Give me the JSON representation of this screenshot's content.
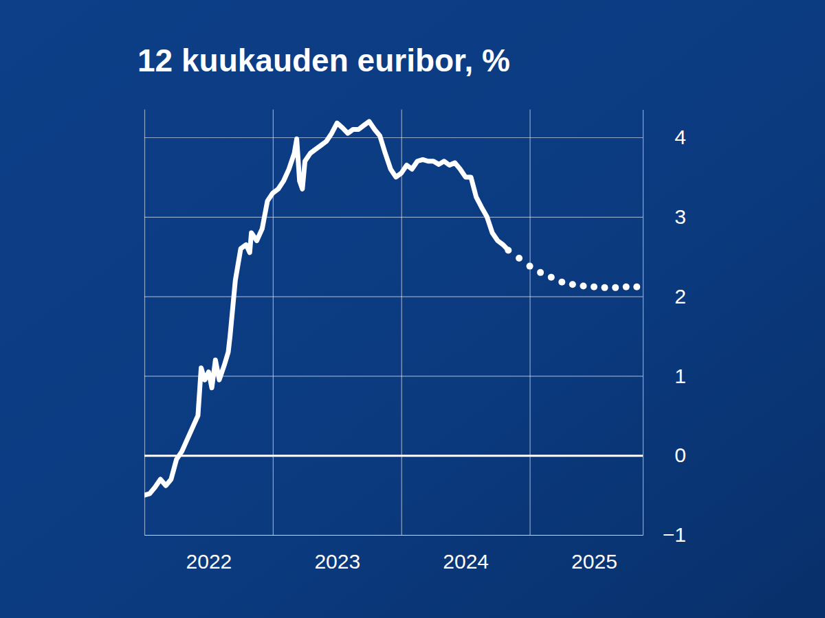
{
  "chart_data": {
    "type": "line",
    "title": "12 kuukauden euribor, %",
    "xlim": [
      2022,
      2025.88
    ],
    "xticks": [
      2022,
      2023,
      2024,
      2025
    ],
    "ylim": [
      -1,
      4.35
    ],
    "yticks": [
      {
        "value": -1,
        "label": "−1"
      },
      0,
      1,
      2,
      3,
      4
    ],
    "grid": true,
    "series": [
      {
        "color": "#ffffff",
        "line_style": "solid",
        "x": [
          2022.0,
          2022.042,
          2022.083,
          2022.125,
          2022.167,
          2022.208,
          2022.25,
          2022.292,
          2022.333,
          2022.375,
          2022.417,
          2022.442,
          2022.47,
          2022.5,
          2022.525,
          2022.553,
          2022.583,
          2022.625,
          2022.653,
          2022.667,
          2022.708,
          2022.75,
          2022.792,
          2022.82,
          2022.833,
          2022.875,
          2022.917,
          2022.958,
          2023.0,
          2023.042,
          2023.083,
          2023.125,
          2023.167,
          2023.186,
          2023.208,
          2023.23,
          2023.25,
          2023.292,
          2023.333,
          2023.375,
          2023.417,
          2023.458,
          2023.5,
          2023.542,
          2023.583,
          2023.625,
          2023.667,
          2023.708,
          2023.75,
          2023.792,
          2023.833,
          2023.875,
          2023.917,
          2023.958,
          2024.0,
          2024.042,
          2024.083,
          2024.125,
          2024.167,
          2024.208,
          2024.25,
          2024.292,
          2024.333,
          2024.375,
          2024.417,
          2024.458,
          2024.5,
          2024.542,
          2024.583,
          2024.625,
          2024.667,
          2024.708,
          2024.75,
          2024.792,
          2024.833
        ],
        "values": [
          -0.5,
          -0.48,
          -0.4,
          -0.3,
          -0.38,
          -0.3,
          -0.05,
          0.05,
          0.2,
          0.35,
          0.5,
          1.1,
          0.95,
          1.05,
          0.85,
          1.2,
          0.95,
          1.15,
          1.3,
          1.5,
          2.2,
          2.6,
          2.65,
          2.55,
          2.8,
          2.7,
          2.85,
          3.2,
          3.3,
          3.35,
          3.45,
          3.6,
          3.8,
          3.98,
          3.45,
          3.35,
          3.7,
          3.8,
          3.85,
          3.9,
          3.95,
          4.05,
          4.18,
          4.12,
          4.05,
          4.1,
          4.1,
          4.15,
          4.2,
          4.1,
          4.02,
          3.8,
          3.6,
          3.5,
          3.55,
          3.65,
          3.6,
          3.7,
          3.72,
          3.7,
          3.7,
          3.66,
          3.7,
          3.65,
          3.68,
          3.6,
          3.5,
          3.5,
          3.25,
          3.12,
          3.0,
          2.8,
          2.7,
          2.65,
          2.58
        ]
      },
      {
        "color": "#ffffff",
        "line_style": "dotted",
        "x": [
          2024.833,
          2024.917,
          2025.0,
          2025.083,
          2025.167,
          2025.25,
          2025.333,
          2025.417,
          2025.5,
          2025.583,
          2025.667,
          2025.75,
          2025.833
        ],
        "values": [
          2.58,
          2.48,
          2.38,
          2.3,
          2.24,
          2.18,
          2.15,
          2.13,
          2.12,
          2.11,
          2.11,
          2.12,
          2.12
        ]
      }
    ]
  }
}
